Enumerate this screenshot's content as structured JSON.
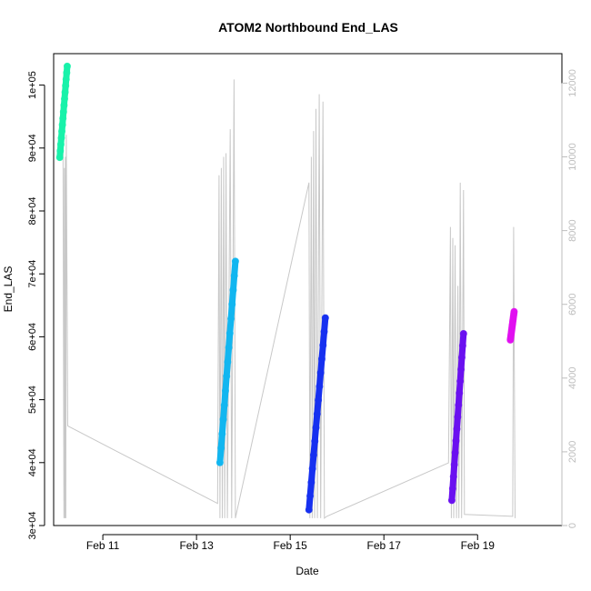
{
  "chart_data": {
    "type": "line",
    "title": "ATOM2 Northbound End_LAS",
    "xlabel": "Date",
    "ylabel": "End_LAS",
    "x_axis": {
      "unit": "day of February",
      "range": [
        9.95,
        20.8
      ],
      "ticks": [
        11,
        13,
        15,
        17,
        19
      ],
      "tick_labels": [
        "Feb 11",
        "Feb 13",
        "Feb 15",
        "Feb 17",
        "Feb 19"
      ]
    },
    "y_axis_left": {
      "range": [
        30000,
        105000
      ],
      "ticks": [
        30000,
        40000,
        50000,
        60000,
        70000,
        80000,
        90000,
        100000
      ],
      "tick_labels": [
        "3e+04",
        "4e+04",
        "5e+04",
        "6e+04",
        "7e+04",
        "8e+04",
        "9e+04",
        "1e+05"
      ]
    },
    "y_axis_right": {
      "color": "#bdbdbd",
      "range": [
        0,
        12800
      ],
      "ticks": [
        0,
        2000,
        4000,
        6000,
        8000,
        10000,
        12000
      ],
      "tick_labels": [
        "0",
        "2000",
        "4000",
        "6000",
        "8000",
        "10000",
        "12000"
      ]
    },
    "grid": false,
    "legend": "none",
    "background_series": {
      "color": "#c8c8c8",
      "axis": "right",
      "points": [
        [
          10.15,
          10250
        ],
        [
          10.17,
          200
        ],
        [
          10.18,
          9700
        ],
        [
          10.19,
          200
        ],
        [
          10.2,
          10000
        ],
        [
          10.21,
          200
        ],
        [
          10.22,
          10600
        ],
        [
          10.25,
          2700
        ],
        [
          13.45,
          600
        ],
        [
          13.48,
          9500
        ],
        [
          13.5,
          200
        ],
        [
          13.53,
          9700
        ],
        [
          13.55,
          200
        ],
        [
          13.58,
          10000
        ],
        [
          13.6,
          200
        ],
        [
          13.63,
          10100
        ],
        [
          13.66,
          200
        ],
        [
          13.72,
          10750
        ],
        [
          13.75,
          200
        ],
        [
          13.8,
          12100
        ],
        [
          13.83,
          200
        ],
        [
          15.4,
          9300
        ],
        [
          15.42,
          200
        ],
        [
          15.45,
          10000
        ],
        [
          15.47,
          200
        ],
        [
          15.5,
          10700
        ],
        [
          15.52,
          200
        ],
        [
          15.55,
          11300
        ],
        [
          15.58,
          200
        ],
        [
          15.62,
          11700
        ],
        [
          15.65,
          200
        ],
        [
          15.7,
          11500
        ],
        [
          15.73,
          200
        ],
        [
          15.78,
          250
        ],
        [
          18.38,
          1700
        ],
        [
          18.42,
          8100
        ],
        [
          18.44,
          200
        ],
        [
          18.47,
          7800
        ],
        [
          18.49,
          200
        ],
        [
          18.52,
          7600
        ],
        [
          18.55,
          200
        ],
        [
          18.58,
          6500
        ],
        [
          18.6,
          200
        ],
        [
          18.63,
          9300
        ],
        [
          18.66,
          200
        ],
        [
          18.7,
          9100
        ],
        [
          18.72,
          300
        ],
        [
          19.75,
          250
        ],
        [
          19.77,
          8100
        ],
        [
          19.8,
          200
        ]
      ]
    },
    "series": [
      {
        "color": "#19f2aa",
        "x": [
          10.08,
          10.24
        ],
        "y": [
          88500,
          103000
        ]
      },
      {
        "color": "#12b6f0",
        "x": [
          13.5,
          13.83
        ],
        "y": [
          40000,
          72000
        ]
      },
      {
        "color": "#1630f0",
        "x": [
          15.4,
          15.75
        ],
        "y": [
          32500,
          63000
        ]
      },
      {
        "color": "#6a10f0",
        "x": [
          18.45,
          18.7
        ],
        "y": [
          34000,
          60500
        ]
      },
      {
        "color": "#e010f0",
        "x": [
          19.7,
          19.78
        ],
        "y": [
          59500,
          64000
        ]
      }
    ]
  }
}
